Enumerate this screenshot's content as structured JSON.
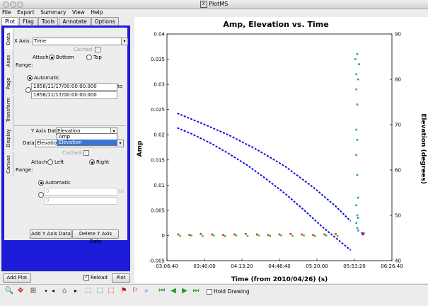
{
  "window": {
    "title": "PlotMS"
  },
  "menu": [
    "File",
    "Export",
    "Summary",
    "View",
    "Help"
  ],
  "tabs": [
    "Plot",
    "Flag",
    "Tools",
    "Annotate",
    "Options"
  ],
  "side_tabs": [
    "Data",
    "Axes",
    "Page",
    "Transform",
    "Display",
    "Canvas"
  ],
  "xaxis": {
    "label": "X Axis:",
    "value": "Time",
    "cached_label": "Cached:",
    "attach_label": "Attach:",
    "attach_bottom": "Bottom",
    "attach_top": "Top",
    "range_label": "Range:",
    "automatic": "Automatic",
    "range_from": "1858/11/17/00:00:00.000",
    "range_to_label": "to",
    "range_to": "1858/11/17/00:00:00.000"
  },
  "yaxis": {
    "label": "Y Axis Data:",
    "value": "Elevation",
    "data_label": "Data:",
    "data_value": "Elevation",
    "dropdown_options": [
      "Amp",
      "Elevation"
    ],
    "cached_label": "Cached:",
    "attach_label": "Attach:",
    "attach_left": "Left",
    "attach_right": "Right",
    "range_label": "Range:",
    "automatic": "Automatic",
    "range_from": "0",
    "range_to_label": "to",
    "range_to": "0"
  },
  "buttons": {
    "add_y": "Add Y Axis Data",
    "delete_y": "Delete Y Axis Data",
    "add_plot": "Add Plot",
    "reload": "Reload",
    "plot": "Plot"
  },
  "toolbar": {
    "hold_drawing": "Hold Drawing"
  },
  "chart_data": {
    "type": "scatter",
    "title": "Amp, Elevation vs. Time",
    "xlabel": "Time (from 2010/04/26) (s)",
    "ylabel": "Amp",
    "y2label": "Elevation (degrees)",
    "x_ticks": [
      "03:06:40",
      "03:40:00",
      "04:13:20",
      "04:46:40",
      "05:20:00",
      "05:53:20",
      "06:26:40"
    ],
    "x_tick_seconds": [
      11200,
      13200,
      15200,
      17200,
      19200,
      21200,
      23200
    ],
    "xlim": [
      11200,
      23200
    ],
    "ylim": [
      -0.005,
      0.04
    ],
    "y_ticks": [
      "-0.005",
      "0",
      "0.005",
      "0.01",
      "0.015",
      "0.02",
      "0.025",
      "0.03",
      "0.035",
      "0.04"
    ],
    "y_tick_values": [
      -0.005,
      0,
      0.005,
      0.01,
      0.015,
      0.02,
      0.025,
      0.03,
      0.035,
      0.04
    ],
    "y2lim": [
      40,
      90
    ],
    "y2_ticks": [
      "40",
      "50",
      "60",
      "70",
      "80",
      "90"
    ],
    "y2_tick_values": [
      40,
      50,
      60,
      70,
      80,
      90
    ],
    "series": [
      {
        "color": "#1010dd",
        "axis": "right",
        "style": "dashed",
        "points": [
          [
            11750,
            72.5
          ],
          [
            13000,
            70.4
          ],
          [
            14500,
            67.7
          ],
          [
            16000,
            64.5
          ],
          [
            17500,
            60.8
          ],
          [
            19000,
            56.2
          ],
          [
            20200,
            52.0
          ],
          [
            21000,
            48.7
          ]
        ]
      },
      {
        "color": "#1010dd",
        "axis": "right",
        "style": "dashed",
        "points": [
          [
            11750,
            69.3
          ],
          [
            12500,
            68.0
          ],
          [
            13500,
            66.0
          ],
          [
            14500,
            63.6
          ],
          [
            15500,
            61.0
          ],
          [
            16500,
            58.0
          ],
          [
            17500,
            54.8
          ],
          [
            18500,
            51.2
          ],
          [
            19500,
            47.4
          ],
          [
            20300,
            44.7
          ],
          [
            21000,
            42.3
          ]
        ]
      },
      {
        "color": "#e03020",
        "axis": "left",
        "style": "points",
        "points": [
          [
            11800,
            0.0002
          ],
          [
            12400,
            0.0001
          ],
          [
            13000,
            0.0003
          ],
          [
            13600,
            0.0002
          ],
          [
            14200,
            0.0001
          ],
          [
            14800,
            0.0002
          ],
          [
            15400,
            0.0003
          ],
          [
            16000,
            0.0002
          ],
          [
            16600,
            0.0001
          ],
          [
            17200,
            0.0002
          ],
          [
            17800,
            0.0003
          ],
          [
            18400,
            0.0002
          ],
          [
            19000,
            0.0001
          ],
          [
            19600,
            0.0002
          ],
          [
            20200,
            0.0003
          ]
        ]
      },
      {
        "color": "#40c030",
        "axis": "left",
        "style": "points",
        "points": [
          [
            11900,
            -0.0001
          ],
          [
            12500,
            0.0
          ],
          [
            13100,
            -0.0001
          ],
          [
            13700,
            0.0
          ],
          [
            14300,
            -0.0001
          ],
          [
            14900,
            0.0
          ],
          [
            15500,
            -0.0001
          ],
          [
            16100,
            0.0
          ],
          [
            16700,
            -0.0001
          ],
          [
            17300,
            0.0
          ],
          [
            17900,
            -0.0001
          ],
          [
            18500,
            0.0
          ],
          [
            19100,
            -0.0001
          ],
          [
            19700,
            0.0
          ],
          [
            20300,
            -0.0001
          ]
        ]
      },
      {
        "color": "#20a0b0",
        "axis": "left",
        "style": "points",
        "points": [
          [
            21250,
            0.035
          ],
          [
            21300,
            0.032
          ],
          [
            21350,
            0.036
          ],
          [
            21400,
            0.031
          ],
          [
            21450,
            0.034
          ],
          [
            21300,
            0.029
          ],
          [
            21350,
            0.026
          ],
          [
            21300,
            0.021
          ],
          [
            21350,
            0.019
          ],
          [
            21300,
            0.016
          ],
          [
            21350,
            0.012
          ],
          [
            21400,
            0.0075
          ],
          [
            21300,
            0.006
          ],
          [
            21350,
            0.004
          ],
          [
            21400,
            0.0035
          ],
          [
            21300,
            0.0025
          ],
          [
            21350,
            0.0015
          ],
          [
            21400,
            0.001
          ]
        ]
      },
      {
        "color": "#8020c0",
        "axis": "left",
        "style": "points",
        "points": [
          [
            21600,
            0.0005
          ],
          [
            21650,
            0.0002
          ],
          [
            21700,
            0.0004
          ]
        ]
      }
    ]
  }
}
